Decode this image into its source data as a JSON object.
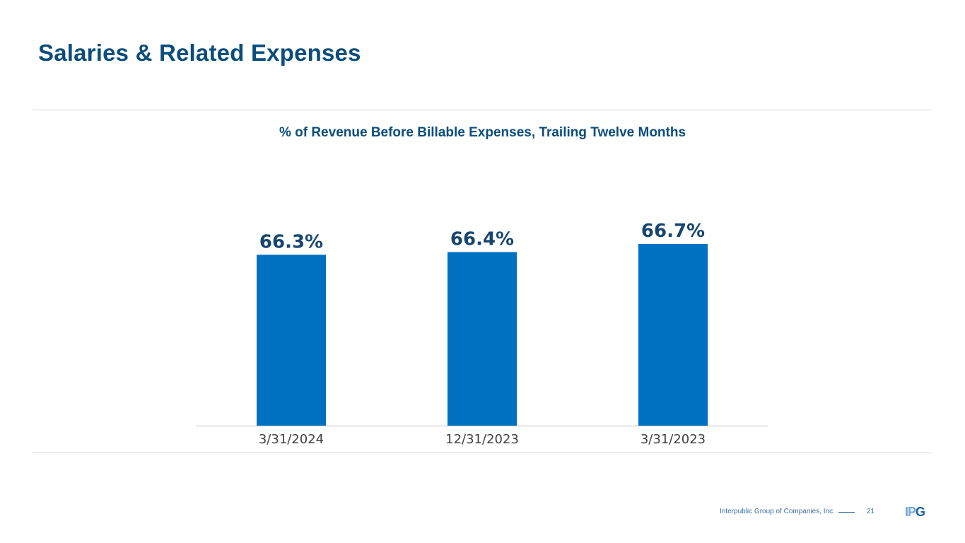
{
  "slide": {
    "title": "Salaries & Related Expenses"
  },
  "chart_data": {
    "type": "bar",
    "title": "% of Revenue Before Billable Expenses, Trailing Twelve Months",
    "categories": [
      "3/31/2024",
      "12/31/2023",
      "3/31/2023"
    ],
    "values": [
      66.3,
      66.4,
      66.7
    ],
    "data_labels": [
      "66.3%",
      "66.4%",
      "66.7%"
    ],
    "xlabel": "",
    "ylabel": "",
    "ylim": [
      60.0,
      67.3
    ],
    "grid": false,
    "legend": "none",
    "colors": {
      "bar": "#0070c0",
      "label": "#17456e"
    }
  },
  "footer": {
    "company": "Interpublic Group of Companies, Inc.",
    "page_number": "21",
    "logo_part1": "IP",
    "logo_part2": "G"
  }
}
